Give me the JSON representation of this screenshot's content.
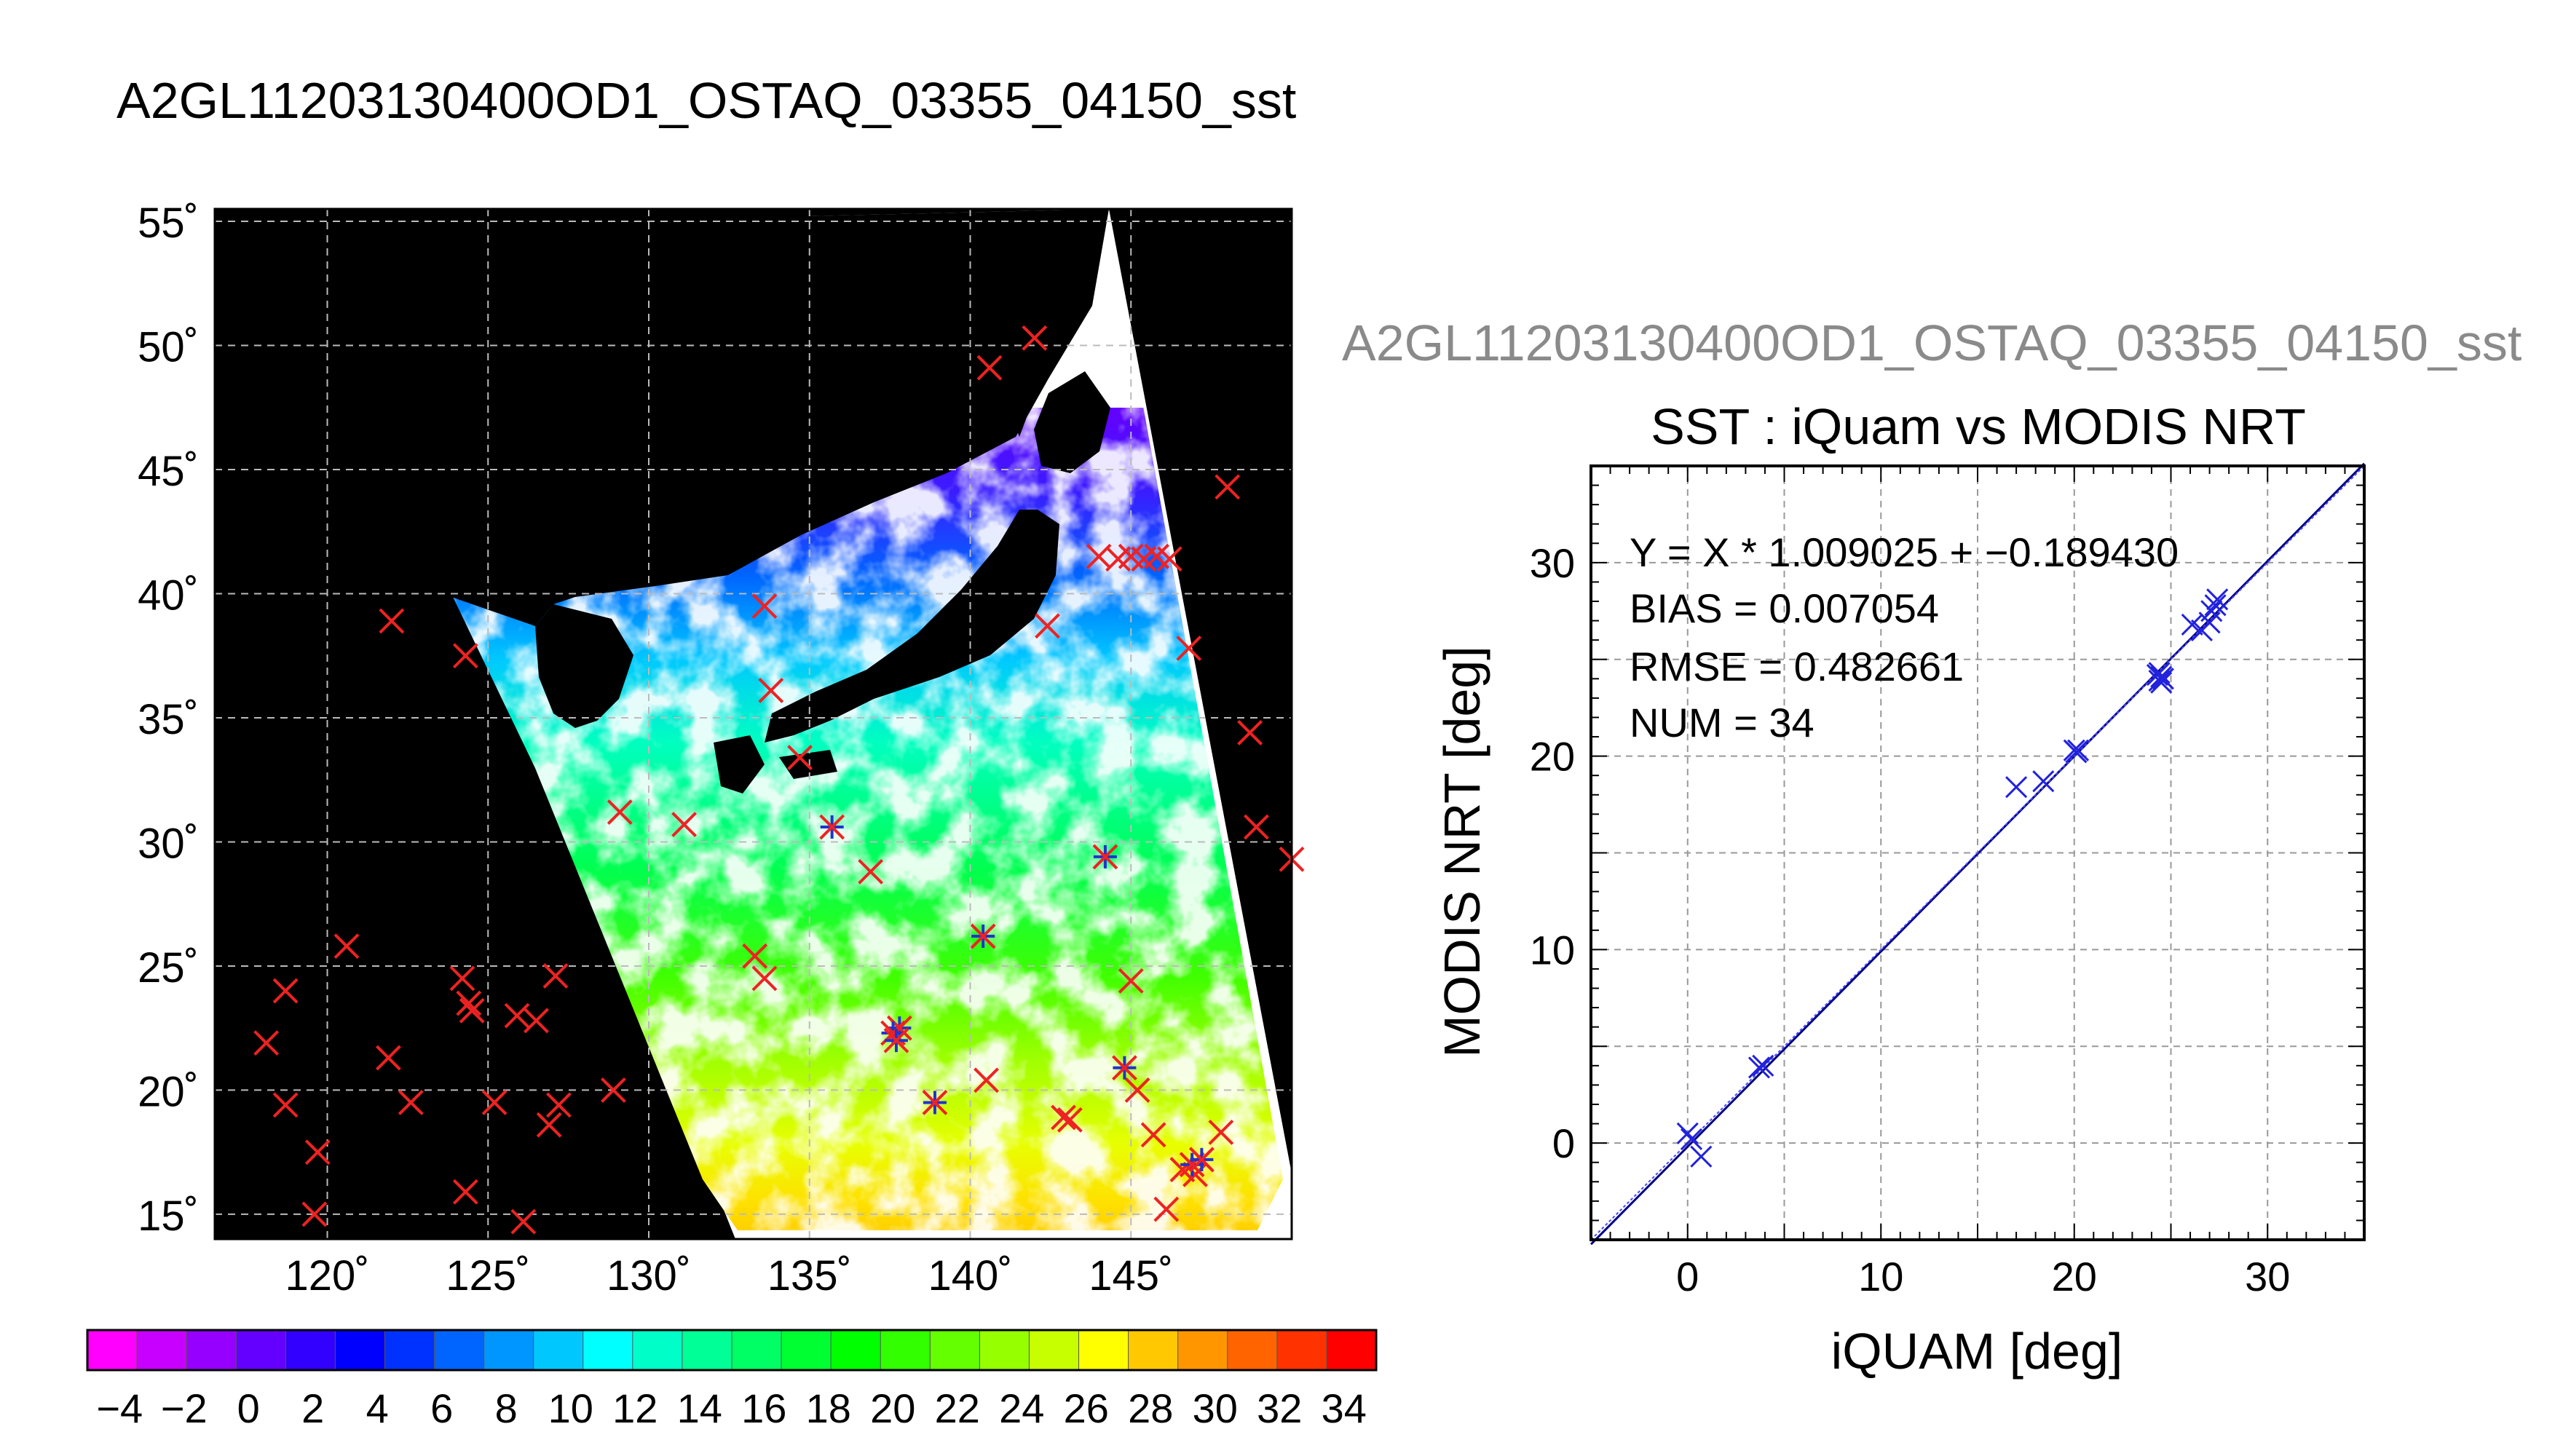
{
  "main_title": "A2GL11203130400OD1_OSTAQ_03355_04150_sst",
  "map": {
    "lat_ticks": [
      {
        "value": 55,
        "label": "55˚"
      },
      {
        "value": 50,
        "label": "50˚"
      },
      {
        "value": 45,
        "label": "45˚"
      },
      {
        "value": 40,
        "label": "40˚"
      },
      {
        "value": 35,
        "label": "35˚"
      },
      {
        "value": 30,
        "label": "30˚"
      },
      {
        "value": 25,
        "label": "25˚"
      },
      {
        "value": 20,
        "label": "20˚"
      },
      {
        "value": 15,
        "label": "15˚"
      }
    ],
    "lon_ticks": [
      {
        "value": 120,
        "label": "120˚"
      },
      {
        "value": 125,
        "label": "125˚"
      },
      {
        "value": 130,
        "label": "130˚"
      },
      {
        "value": 135,
        "label": "135˚"
      },
      {
        "value": 140,
        "label": "140˚"
      },
      {
        "value": 145,
        "label": "145˚"
      }
    ],
    "lon_range": [
      116.5,
      150
    ],
    "lat_range": [
      14,
      55.5
    ],
    "background_color": "#000000",
    "cloud_color": "#ffffff",
    "land_color": "#000000",
    "matchup_marker_color": "#ee2222",
    "matched_marker_color": "#2233cc",
    "red_markers": [
      [
        118.1,
        21.9
      ],
      [
        118.7,
        24.0
      ],
      [
        118.7,
        19.4
      ],
      [
        119.7,
        17.5
      ],
      [
        119.6,
        15.0
      ],
      [
        120.6,
        25.8
      ],
      [
        121.9,
        21.3
      ],
      [
        122.0,
        38.9
      ],
      [
        122.6,
        19.5
      ],
      [
        124.2,
        24.5
      ],
      [
        124.4,
        23.5
      ],
      [
        124.5,
        23.2
      ],
      [
        124.3,
        15.9
      ],
      [
        125.2,
        19.5
      ],
      [
        125.9,
        23.0
      ],
      [
        126.5,
        22.8
      ],
      [
        126.1,
        14.7
      ],
      [
        127.1,
        24.6
      ],
      [
        127.2,
        19.4
      ],
      [
        126.9,
        18.6
      ],
      [
        124.3,
        37.5
      ],
      [
        128.9,
        20.0
      ],
      [
        129.1,
        31.2
      ],
      [
        131.1,
        30.7
      ],
      [
        133.6,
        39.5
      ],
      [
        133.8,
        36.1
      ],
      [
        134.7,
        33.4
      ],
      [
        133.3,
        25.4
      ],
      [
        133.6,
        24.5
      ],
      [
        136.9,
        28.8
      ],
      [
        140.6,
        49.1
      ],
      [
        142.0,
        50.3
      ],
      [
        142.4,
        38.7
      ],
      [
        144.0,
        41.5
      ],
      [
        144.6,
        41.4
      ],
      [
        145.0,
        41.5
      ],
      [
        145.4,
        41.4
      ],
      [
        145.8,
        41.5
      ],
      [
        146.2,
        41.4
      ],
      [
        148.0,
        44.3
      ],
      [
        146.8,
        37.8
      ],
      [
        148.7,
        34.4
      ],
      [
        148.9,
        30.6
      ],
      [
        150.0,
        29.3
      ],
      [
        145.0,
        24.4
      ],
      [
        145.2,
        20.0
      ],
      [
        145.7,
        18.2
      ],
      [
        146.1,
        15.2
      ],
      [
        140.5,
        20.4
      ],
      [
        142.9,
        18.9
      ],
      [
        143.1,
        18.8
      ],
      [
        147.2,
        17.2
      ],
      [
        147.8,
        18.3
      ],
      [
        146.6,
        16.8
      ],
      [
        147.0,
        16.6
      ]
    ],
    "matched_markers": [
      [
        135.7,
        30.6
      ],
      [
        144.2,
        29.4
      ],
      [
        140.4,
        26.2
      ],
      [
        137.8,
        22.5
      ],
      [
        137.6,
        22.3
      ],
      [
        137.7,
        22.0
      ],
      [
        138.9,
        19.5
      ],
      [
        144.8,
        20.9
      ],
      [
        146.9,
        17.0
      ],
      [
        147.2,
        17.2
      ]
    ]
  },
  "colorbar": {
    "min": -5,
    "max": 35,
    "tick_labels": [
      "−4",
      "−2",
      "0",
      "2",
      "4",
      "6",
      "8",
      "10",
      "12",
      "14",
      "16",
      "18",
      "20",
      "22",
      "24",
      "26",
      "28",
      "30",
      "32",
      "34"
    ],
    "colors": [
      "#ff00ff",
      "#c800ff",
      "#9600ff",
      "#6400ff",
      "#3200ff",
      "#0000ff",
      "#0032ff",
      "#0064ff",
      "#0096ff",
      "#00c8ff",
      "#00ffff",
      "#00ffc8",
      "#00ff96",
      "#00ff64",
      "#00ff32",
      "#00ff00",
      "#32ff00",
      "#64ff00",
      "#96ff00",
      "#c8ff00",
      "#ffff00",
      "#ffc800",
      "#ff9600",
      "#ff6400",
      "#ff3200",
      "#ff0000"
    ]
  },
  "scatter_title_gray": "A2GL11203130400OD1_OSTAQ_03355_04150_sst",
  "chart_data": {
    "type": "scatter",
    "title": "SST : iQuam vs MODIS NRT",
    "xlabel": "iQUAM [deg]",
    "ylabel": "MODIS NRT [deg]",
    "xlim": [
      -5,
      35
    ],
    "ylim": [
      -5,
      35
    ],
    "x_ticks": [
      0,
      10,
      20,
      30
    ],
    "y_ticks": [
      0,
      10,
      20,
      30
    ],
    "grid": true,
    "marker_color": "#2222dd",
    "fit_line_color": "#000080",
    "stats": {
      "fit": "Y = X * 1.009025 + −0.189430",
      "bias": "BIAS = 0.007054",
      "rmse": "RMSE = 0.482661",
      "num": "NUM = 34"
    },
    "fit_slope": 1.009025,
    "fit_intercept": -0.18943,
    "points": [
      {
        "x": 0.0,
        "y": 0.5
      },
      {
        "x": 0.2,
        "y": 0.2
      },
      {
        "x": 0.7,
        "y": -0.7
      },
      {
        "x": 3.7,
        "y": 3.9
      },
      {
        "x": 3.9,
        "y": 4.0
      },
      {
        "x": 17.0,
        "y": 18.4
      },
      {
        "x": 18.4,
        "y": 18.7
      },
      {
        "x": 20.0,
        "y": 20.3
      },
      {
        "x": 20.2,
        "y": 20.3
      },
      {
        "x": 20.1,
        "y": 20.2
      },
      {
        "x": 24.3,
        "y": 24.2
      },
      {
        "x": 24.4,
        "y": 23.9
      },
      {
        "x": 24.5,
        "y": 24.1
      },
      {
        "x": 24.5,
        "y": 23.8
      },
      {
        "x": 24.6,
        "y": 24.0
      },
      {
        "x": 24.4,
        "y": 24.3
      },
      {
        "x": 26.1,
        "y": 26.8
      },
      {
        "x": 26.6,
        "y": 26.5
      },
      {
        "x": 27.0,
        "y": 26.9
      },
      {
        "x": 27.1,
        "y": 27.5
      },
      {
        "x": 27.3,
        "y": 27.8
      },
      {
        "x": 27.4,
        "y": 28.1
      }
    ]
  }
}
